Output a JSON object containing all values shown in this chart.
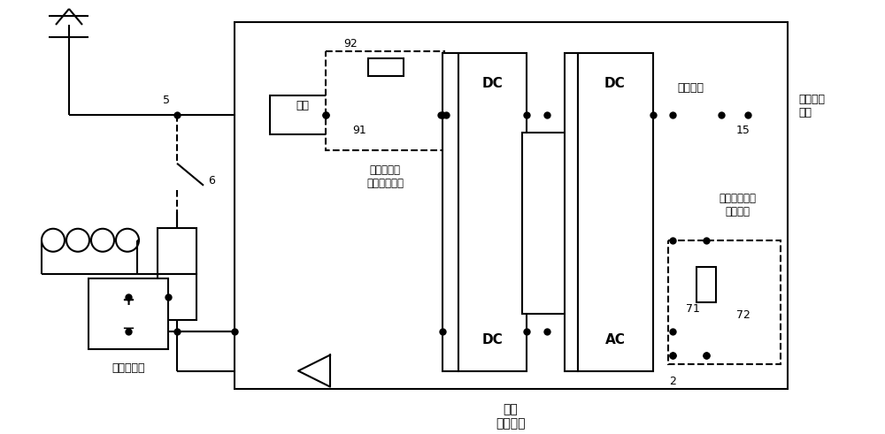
{
  "bg": "#ffffff",
  "lc": "#000000",
  "lw": 1.5,
  "fw": 10.0,
  "fh": 4.91,
  "labels": {
    "main_break": "主断",
    "battery": "牵引蓄电池",
    "contact_net": "接触网预充\n电、充电电路",
    "depot_charge": "库内预充电、\n充电电路",
    "depot_socket": "库内\n充电插座",
    "ac_load": "交流辅助\n负载",
    "three_phase": "三相交流",
    "n5": "5",
    "n6": "6",
    "n91": "91",
    "n92": "92",
    "n71": "71",
    "n72": "72",
    "n2": "2",
    "n15": "15",
    "DC": "DC",
    "AC": "AC"
  }
}
